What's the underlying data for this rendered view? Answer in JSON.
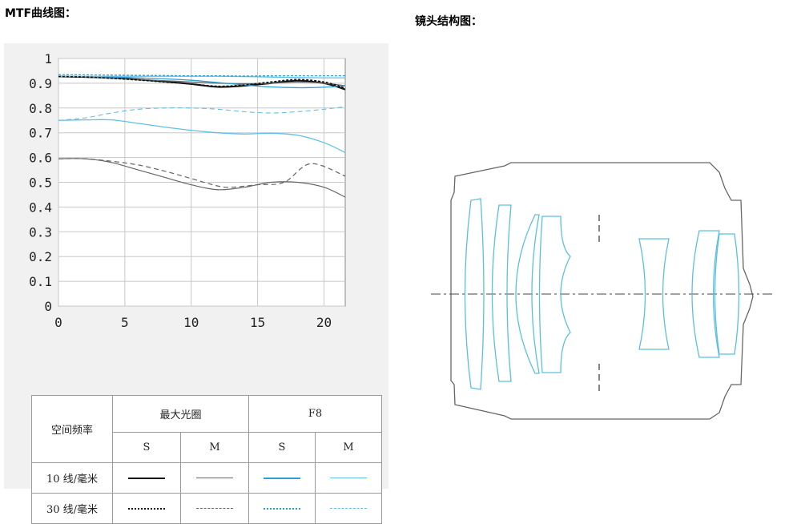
{
  "headings": {
    "mtf": "MTF曲线图：",
    "lens": "镜头结构图："
  },
  "legend": {
    "corner": "空间频率",
    "group_max": "最大光圈",
    "group_f8": "F8",
    "col_s": "S",
    "col_m": "M",
    "row_10": "10 线/毫米",
    "row_30": "30 线/毫米",
    "colors": {
      "black": "#111111",
      "gray": "#666666",
      "blue": "#2a9fd6",
      "lightblue": "#63bfe6"
    }
  },
  "chart_data": {
    "type": "line",
    "title": "",
    "xlabel": "",
    "ylabel": "",
    "xlim": [
      0,
      21.6
    ],
    "ylim": [
      0,
      1
    ],
    "xticks": [
      0,
      5,
      10,
      15,
      20
    ],
    "yticks": [
      0,
      0.1,
      0.2,
      0.3,
      0.4,
      0.5,
      0.6,
      0.7,
      0.8,
      0.9,
      1
    ],
    "ytick_labels": [
      "0",
      "0.1",
      "0.2",
      "0.3",
      "0.4",
      "0.5",
      "0.6",
      "0.7",
      "0.8",
      "0.9",
      "1"
    ],
    "grid": true,
    "series": [
      {
        "name": "最大光圈 S 10 线/毫米",
        "color": "#111111",
        "dash": "solid",
        "width": 2,
        "x": [
          0,
          2,
          4,
          6,
          8,
          10,
          12,
          14,
          16,
          18,
          20,
          21.6
        ],
        "y": [
          0.927,
          0.925,
          0.922,
          0.915,
          0.907,
          0.897,
          0.885,
          0.89,
          0.9,
          0.91,
          0.9,
          0.875
        ]
      },
      {
        "name": "最大光圈 M 10 线/毫米",
        "color": "#666666",
        "dash": "solid",
        "width": 1.3,
        "x": [
          0,
          2,
          4,
          6,
          8,
          10,
          12,
          14,
          16,
          18,
          20,
          21.6
        ],
        "y": [
          0.927,
          0.925,
          0.92,
          0.915,
          0.91,
          0.905,
          0.9,
          0.898,
          0.9,
          0.905,
          0.9,
          0.89
        ]
      },
      {
        "name": "F8 S 10 线/毫米",
        "color": "#2a9fd6",
        "dash": "solid",
        "width": 1.3,
        "x": [
          0,
          2,
          4,
          6,
          8,
          10,
          12,
          14,
          16,
          18,
          20,
          21.6
        ],
        "y": [
          0.927,
          0.927,
          0.925,
          0.922,
          0.918,
          0.912,
          0.903,
          0.893,
          0.885,
          0.882,
          0.884,
          0.89
        ]
      },
      {
        "name": "F8 M 10 线/毫米",
        "color": "#63bfe6",
        "dash": "solid",
        "width": 1.3,
        "x": [
          0,
          2,
          4,
          6,
          8,
          10,
          12,
          14,
          16,
          18,
          20,
          21.6
        ],
        "y": [
          0.927,
          0.928,
          0.928,
          0.928,
          0.928,
          0.928,
          0.928,
          0.927,
          0.925,
          0.923,
          0.922,
          0.922
        ]
      },
      {
        "name": "最大光圈 S 30 线/毫米",
        "color": "#111111",
        "dash": "dense",
        "width": 1.6,
        "x": [
          0,
          2,
          4,
          6,
          8,
          10,
          12,
          14,
          16,
          18,
          20,
          21.6
        ],
        "y": [
          0.927,
          0.925,
          0.92,
          0.913,
          0.905,
          0.897,
          0.888,
          0.893,
          0.905,
          0.915,
          0.905,
          0.88
        ]
      },
      {
        "name": "最大光圈 M 30 线/毫米",
        "color": "#666666",
        "dash": "long",
        "width": 1.2,
        "x": [
          0,
          2,
          4,
          6,
          8,
          10,
          12,
          13,
          15,
          17,
          19,
          21.6
        ],
        "y": [
          0.595,
          0.595,
          0.585,
          0.57,
          0.545,
          0.515,
          0.485,
          0.48,
          0.49,
          0.5,
          0.575,
          0.525
        ]
      },
      {
        "name": "F8 S 30 线/毫米",
        "color": "#2a9fd6",
        "dash": "dense",
        "width": 1.3,
        "x": [
          0,
          2,
          4,
          6,
          8,
          10,
          12,
          14,
          16,
          18,
          20,
          21.6
        ],
        "y": [
          0.935,
          0.934,
          0.933,
          0.932,
          0.931,
          0.93,
          0.93,
          0.929,
          0.93,
          0.93,
          0.93,
          0.93
        ]
      },
      {
        "name": "F8 M 30 线/毫米",
        "color": "#63bfe6",
        "dash": "long",
        "width": 1.1,
        "x": [
          0,
          2,
          4,
          6,
          8,
          10,
          12,
          14,
          16,
          18,
          20,
          21.6
        ],
        "y": [
          0.75,
          0.76,
          0.78,
          0.795,
          0.8,
          0.8,
          0.795,
          0.785,
          0.78,
          0.785,
          0.795,
          0.805
        ]
      },
      {
        "name": "",
        "color": "#63bfe6",
        "dash": "solid",
        "width": 1.3,
        "x": [
          0,
          2,
          4,
          6,
          8,
          10,
          12,
          14,
          16,
          18,
          20,
          21.6
        ],
        "y": [
          0.75,
          0.752,
          0.752,
          0.738,
          0.723,
          0.71,
          0.7,
          0.695,
          0.698,
          0.69,
          0.66,
          0.62
        ]
      },
      {
        "name": "",
        "color": "#666666",
        "dash": "solid",
        "width": 1.2,
        "x": [
          0,
          2,
          4,
          6,
          8,
          10,
          12,
          14,
          16,
          18,
          20,
          21.6
        ],
        "y": [
          0.595,
          0.595,
          0.58,
          0.55,
          0.52,
          0.49,
          0.47,
          0.48,
          0.5,
          0.5,
          0.48,
          0.44
        ]
      }
    ]
  }
}
